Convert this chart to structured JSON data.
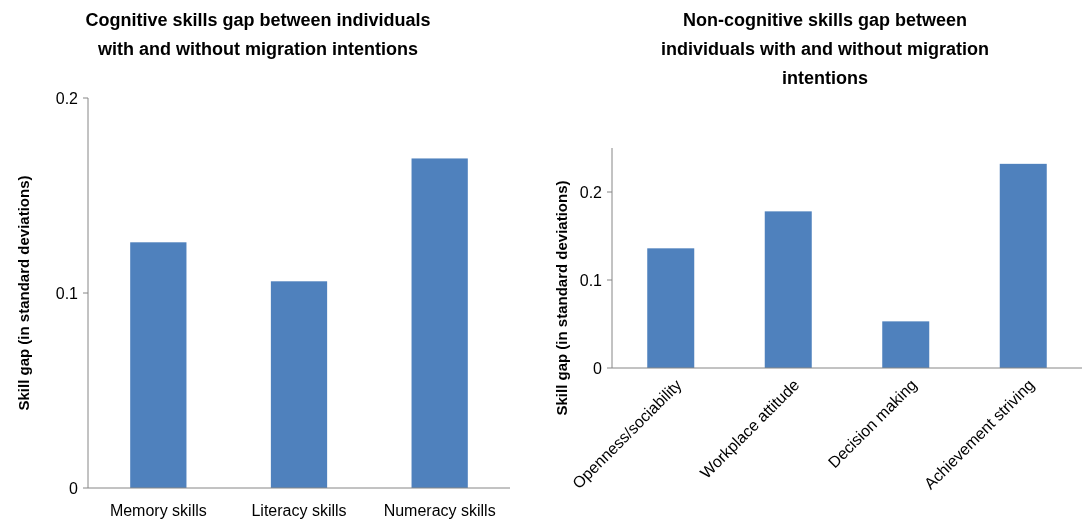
{
  "chart_data": [
    {
      "type": "bar",
      "title": "Cognitive skills gap between individuals with and without migration intentions",
      "ylabel": "Skill gap (in standard deviations)",
      "categories": [
        "Memory skills",
        "Literacy skills",
        "Numeracy skills"
      ],
      "values": [
        0.126,
        0.106,
        0.169
      ],
      "color": "#4f81bd",
      "ylim": [
        0,
        0.2
      ],
      "yticks": [
        0,
        0.1,
        0.2
      ],
      "grid": false
    },
    {
      "type": "bar",
      "title": "Non-cognitive skills gap between individuals with and without migration intentions",
      "ylabel": "Skill gap (in standard deviations)",
      "categories": [
        "Openness/sociability",
        "Workplace attitude",
        "Decision making",
        "Achievement striving"
      ],
      "values": [
        0.136,
        0.178,
        0.053,
        0.232
      ],
      "color": "#4f81bd",
      "ylim": [
        0,
        0.25
      ],
      "yticks": [
        0,
        0.1,
        0.2
      ],
      "grid": false
    }
  ]
}
